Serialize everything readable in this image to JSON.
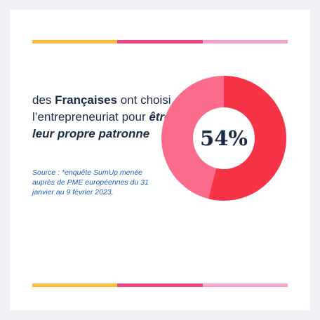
{
  "colors": {
    "stripe": [
      "#fbbf3a",
      "#f0457a",
      "#f8a3cc"
    ],
    "slice_primary": "#f73447",
    "slice_secondary": "#fb6b8a",
    "text_dark": "#1c2a45",
    "text_source": "#1f5fb5"
  },
  "headline": {
    "part1": "des ",
    "bold1": "Françaises",
    "part2": " ont choisi l’entrepreneuriat pour ",
    "bold2": "être leur propre patronne"
  },
  "source": {
    "label": "Source : ",
    "text": "*enquête SumUp menée auprès de PME européennes du 31 janvier au 9 février 2023,"
  },
  "chart_data": {
    "type": "pie",
    "style": "donut",
    "center_label": "54%",
    "slices": [
      {
        "value": 54,
        "color": "#f73447"
      },
      {
        "value": 46,
        "color": "#fb6b8a"
      }
    ]
  }
}
